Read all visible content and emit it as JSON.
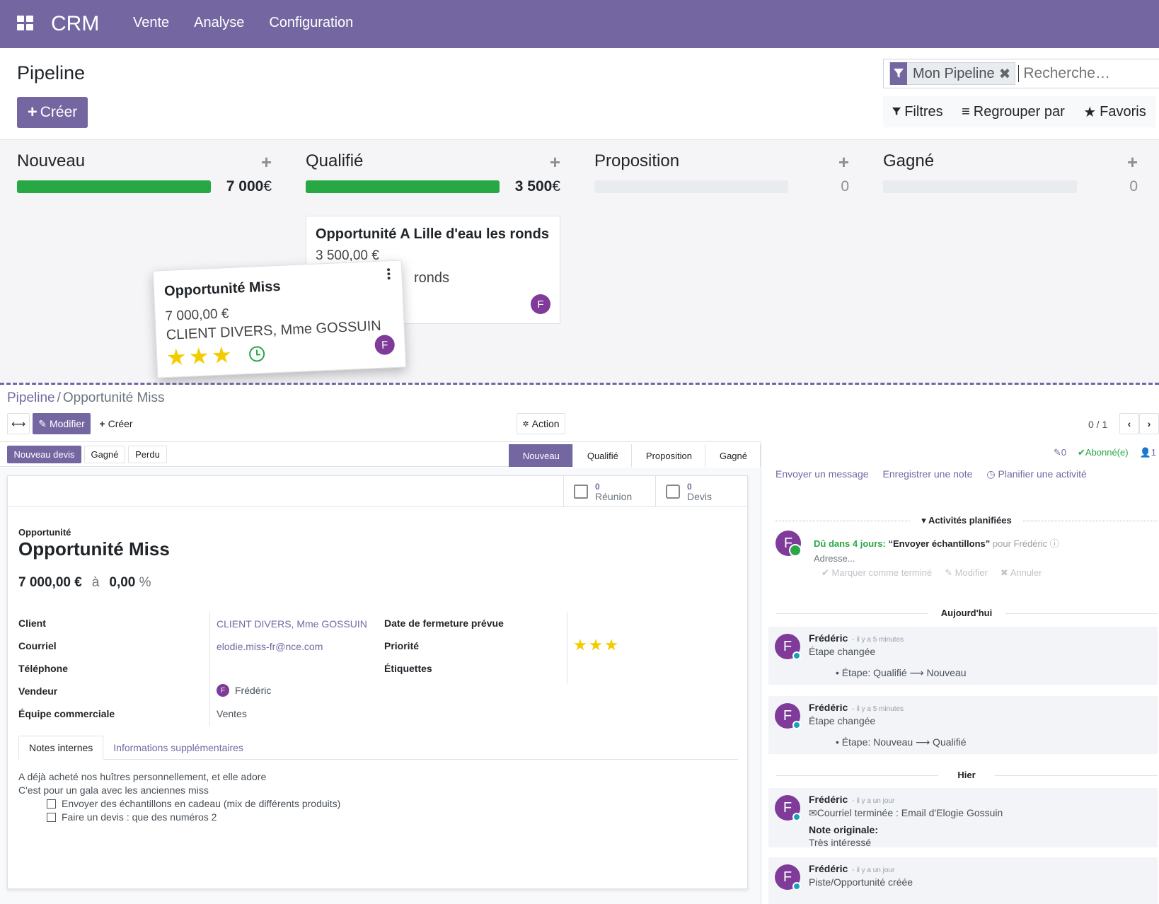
{
  "navbar": {
    "brand": "CRM",
    "menu": [
      "Vente",
      "Analyse",
      "Configuration"
    ]
  },
  "control": {
    "title": "Pipeline",
    "create_label": "Créer",
    "facet_label": "Mon Pipeline",
    "search_placeholder": "Recherche…",
    "filters": "Filtres",
    "group_by": "Regrouper par",
    "favorites": "Favoris"
  },
  "columns": [
    {
      "title": "Nouveau",
      "sum": "7 000",
      "currency": "€",
      "progress": 1.0
    },
    {
      "title": "Qualifié",
      "sum": "3 500",
      "currency": "€",
      "progress": 1.0
    },
    {
      "title": "Proposition",
      "sum": "0",
      "currency": "",
      "progress": 0
    },
    {
      "title": "Gagné",
      "sum": "0",
      "currency": "",
      "progress": 0
    }
  ],
  "cards": {
    "dragged": {
      "title": "Opportunité Miss",
      "amount": "7 000,00 €",
      "client": "CLIENT DIVERS, Mme GOSSUIN",
      "avatar": "F",
      "priority_stars": 3
    },
    "qualified": {
      "title": "Opportunité A Lille d'eau les ronds",
      "amount": "3 500,00 €",
      "client": "ronds",
      "avatar": "F"
    }
  },
  "form": {
    "breadcrumb": {
      "parent": "Pipeline",
      "sep": "/",
      "current": "Opportunité Miss"
    },
    "buttons": {
      "modify": "Modifier",
      "create": "Créer",
      "action": "Action"
    },
    "pager": "0 / 1",
    "status_buttons": [
      "Nouveau devis",
      "Gagné",
      "Perdu"
    ],
    "stages": [
      "Nouveau",
      "Qualifié",
      "Proposition",
      "Gagné"
    ],
    "active_stage": "Nouveau",
    "stats": [
      {
        "value": "0",
        "label": "Réunion"
      },
      {
        "value": "0",
        "label": "Devis"
      }
    ],
    "label_small": "Opportunité",
    "name": "Opportunité Miss",
    "revenue": "7 000,00 €",
    "at": "à",
    "probability": "0,00",
    "percent": "%",
    "fields_left": [
      {
        "label": "Client",
        "value": "CLIENT DIVERS, Mme GOSSUIN"
      },
      {
        "label": "Courriel",
        "value": "elodie.miss-fr@nce.com"
      },
      {
        "label": "Téléphone",
        "value": ""
      },
      {
        "label": "Vendeur",
        "value": "Frédéric"
      },
      {
        "label": "Équipe commerciale",
        "value": "Ventes"
      }
    ],
    "fields_right": [
      {
        "label": "Date de fermeture prévue",
        "value": ""
      },
      {
        "label": "Priorité",
        "value": ""
      },
      {
        "label": "Étiquettes",
        "value": ""
      }
    ],
    "priority_stars": 3,
    "tabs": [
      "Notes internes",
      "Informations supplémentaires"
    ],
    "notes": {
      "line1": "A déjà acheté nos huîtres personnellement, et elle adore",
      "line2": "C'est pour un gala avec les anciennes miss",
      "todo1": "Envoyer des échantillons en cadeau (mix de différents produits)",
      "todo2": "Faire un devis : que des numéros 2"
    }
  },
  "chatter": {
    "attachments": "0",
    "follow": "Abonné(e)",
    "followers": "1",
    "actions": [
      "Envoyer un message",
      "Enregistrer une note",
      "Planifier une activité"
    ],
    "planned_title": "Activités planifiées",
    "activity": {
      "due": "Dû dans 4 jours:",
      "summary": "“Envoyer échantillons”",
      "for": "pour Frédéric",
      "note": "Adresse...",
      "mark_done": "Marquer comme terminé",
      "edit": "Modifier",
      "cancel": "Annuler"
    },
    "today": "Aujourd'hui",
    "yesterday": "Hier",
    "messages": [
      {
        "author": "Frédéric",
        "time": "- il y a 5 minutes",
        "body": "Étape changée",
        "detail": "Étape: Qualifié ⟶ Nouveau"
      },
      {
        "author": "Frédéric",
        "time": "- il y a 5 minutes",
        "body": "Étape changée",
        "detail": "Étape: Nouveau ⟶ Qualifié"
      },
      {
        "author": "Frédéric",
        "time": "- il y a un jour",
        "body": "Courriel terminée : Email d'Elogie Gossuin",
        "note_label": "Note originale:",
        "note": "Très intéressé"
      },
      {
        "author": "Frédéric",
        "time": "- il y a un jour",
        "body": "Piste/Opportunité créée"
      }
    ],
    "avatar_letter": "F"
  },
  "colors": {
    "brand": "#7467a1",
    "success": "#28a745",
    "star": "#f3cc00"
  }
}
